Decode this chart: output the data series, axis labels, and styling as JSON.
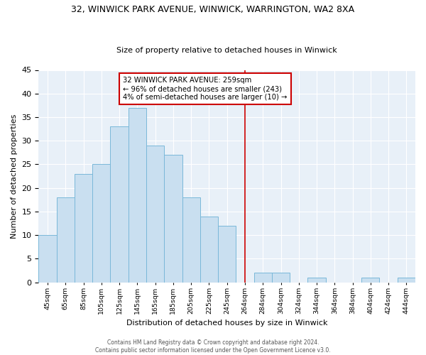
{
  "title": "32, WINWICK PARK AVENUE, WINWICK, WARRINGTON, WA2 8XA",
  "subtitle": "Size of property relative to detached houses in Winwick",
  "xlabel": "Distribution of detached houses by size in Winwick",
  "ylabel": "Number of detached properties",
  "bar_labels": [
    "45sqm",
    "65sqm",
    "85sqm",
    "105sqm",
    "125sqm",
    "145sqm",
    "165sqm",
    "185sqm",
    "205sqm",
    "225sqm",
    "245sqm",
    "264sqm",
    "284sqm",
    "304sqm",
    "324sqm",
    "344sqm",
    "364sqm",
    "384sqm",
    "404sqm",
    "424sqm",
    "444sqm"
  ],
  "bar_values": [
    10,
    18,
    23,
    25,
    33,
    37,
    29,
    27,
    18,
    14,
    12,
    0,
    2,
    2,
    0,
    1,
    0,
    0,
    1,
    0,
    1
  ],
  "bar_color": "#c9dff0",
  "bar_edge_color": "#7ab8d9",
  "vline_x_index": 11,
  "vline_color": "#cc0000",
  "ann_line1": "32 WINWICK PARK AVENUE: 259sqm",
  "ann_line2": "← 96% of detached houses are smaller (243)",
  "ann_line3": "4% of semi-detached houses are larger (10) →",
  "box_edge_color": "#cc0000",
  "footer_line1": "Contains HM Land Registry data © Crown copyright and database right 2024.",
  "footer_line2": "Contains public sector information licensed under the Open Government Licence v3.0.",
  "ylim": [
    0,
    45
  ],
  "yticks": [
    0,
    5,
    10,
    15,
    20,
    25,
    30,
    35,
    40,
    45
  ],
  "background_color": "#ffffff",
  "plot_background": "#e8f0f8",
  "grid_color": "#ffffff",
  "title_fontsize": 9,
  "subtitle_fontsize": 8,
  "ylabel_fontsize": 8,
  "xlabel_fontsize": 8
}
